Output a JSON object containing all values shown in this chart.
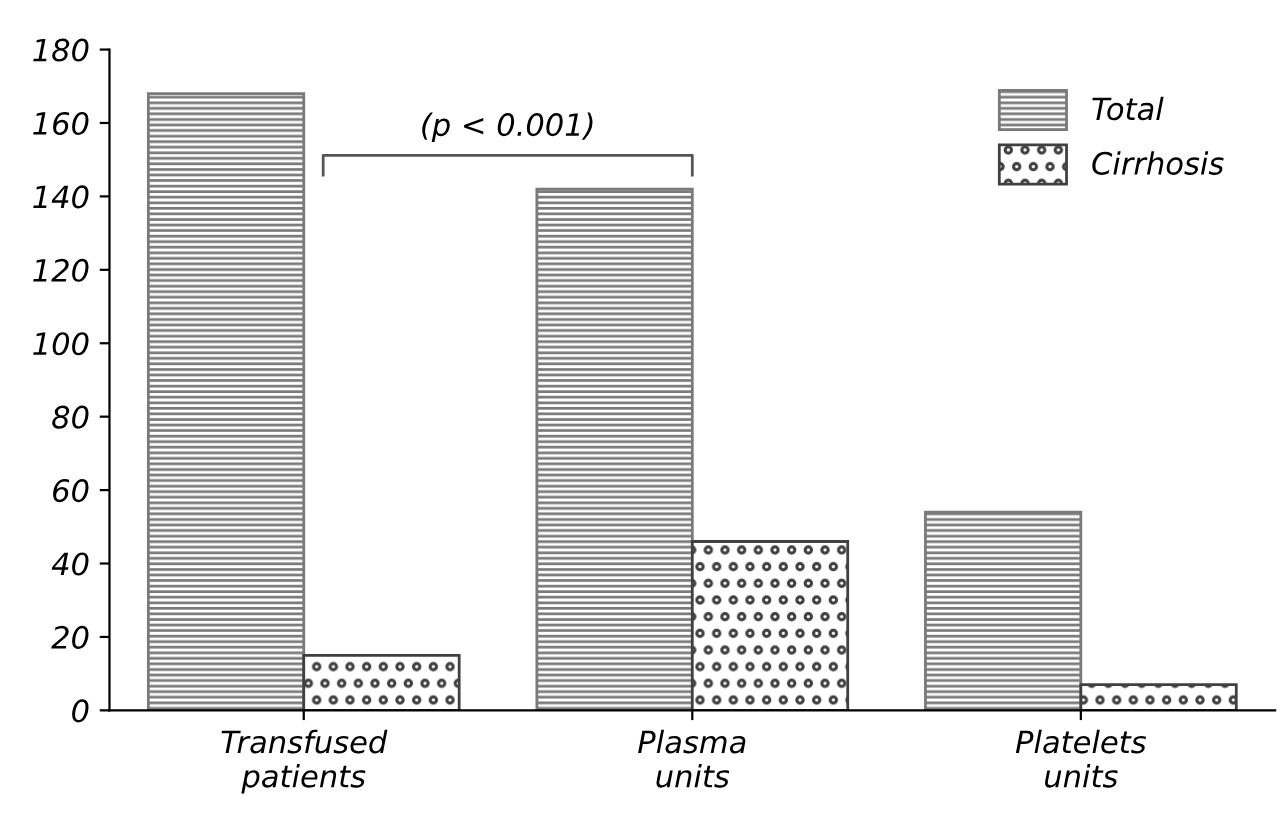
{
  "chart_data": {
    "type": "bar",
    "categories": [
      "Transfused\npatients",
      "Plasma\nunits",
      "Platelets\nunits"
    ],
    "series": [
      {
        "name": "Total",
        "color": "#7a7a7a",
        "values": [
          168,
          142,
          54
        ]
      },
      {
        "name": "Cirrhosis",
        "color": "#404040",
        "values": [
          15,
          46,
          7
        ]
      }
    ],
    "ylim": [
      0,
      180
    ],
    "yticks": [
      0,
      20,
      40,
      60,
      80,
      100,
      120,
      140,
      160,
      180
    ],
    "annotations": [
      "(p < 0.001)"
    ],
    "legend": "top right",
    "grid": false
  }
}
